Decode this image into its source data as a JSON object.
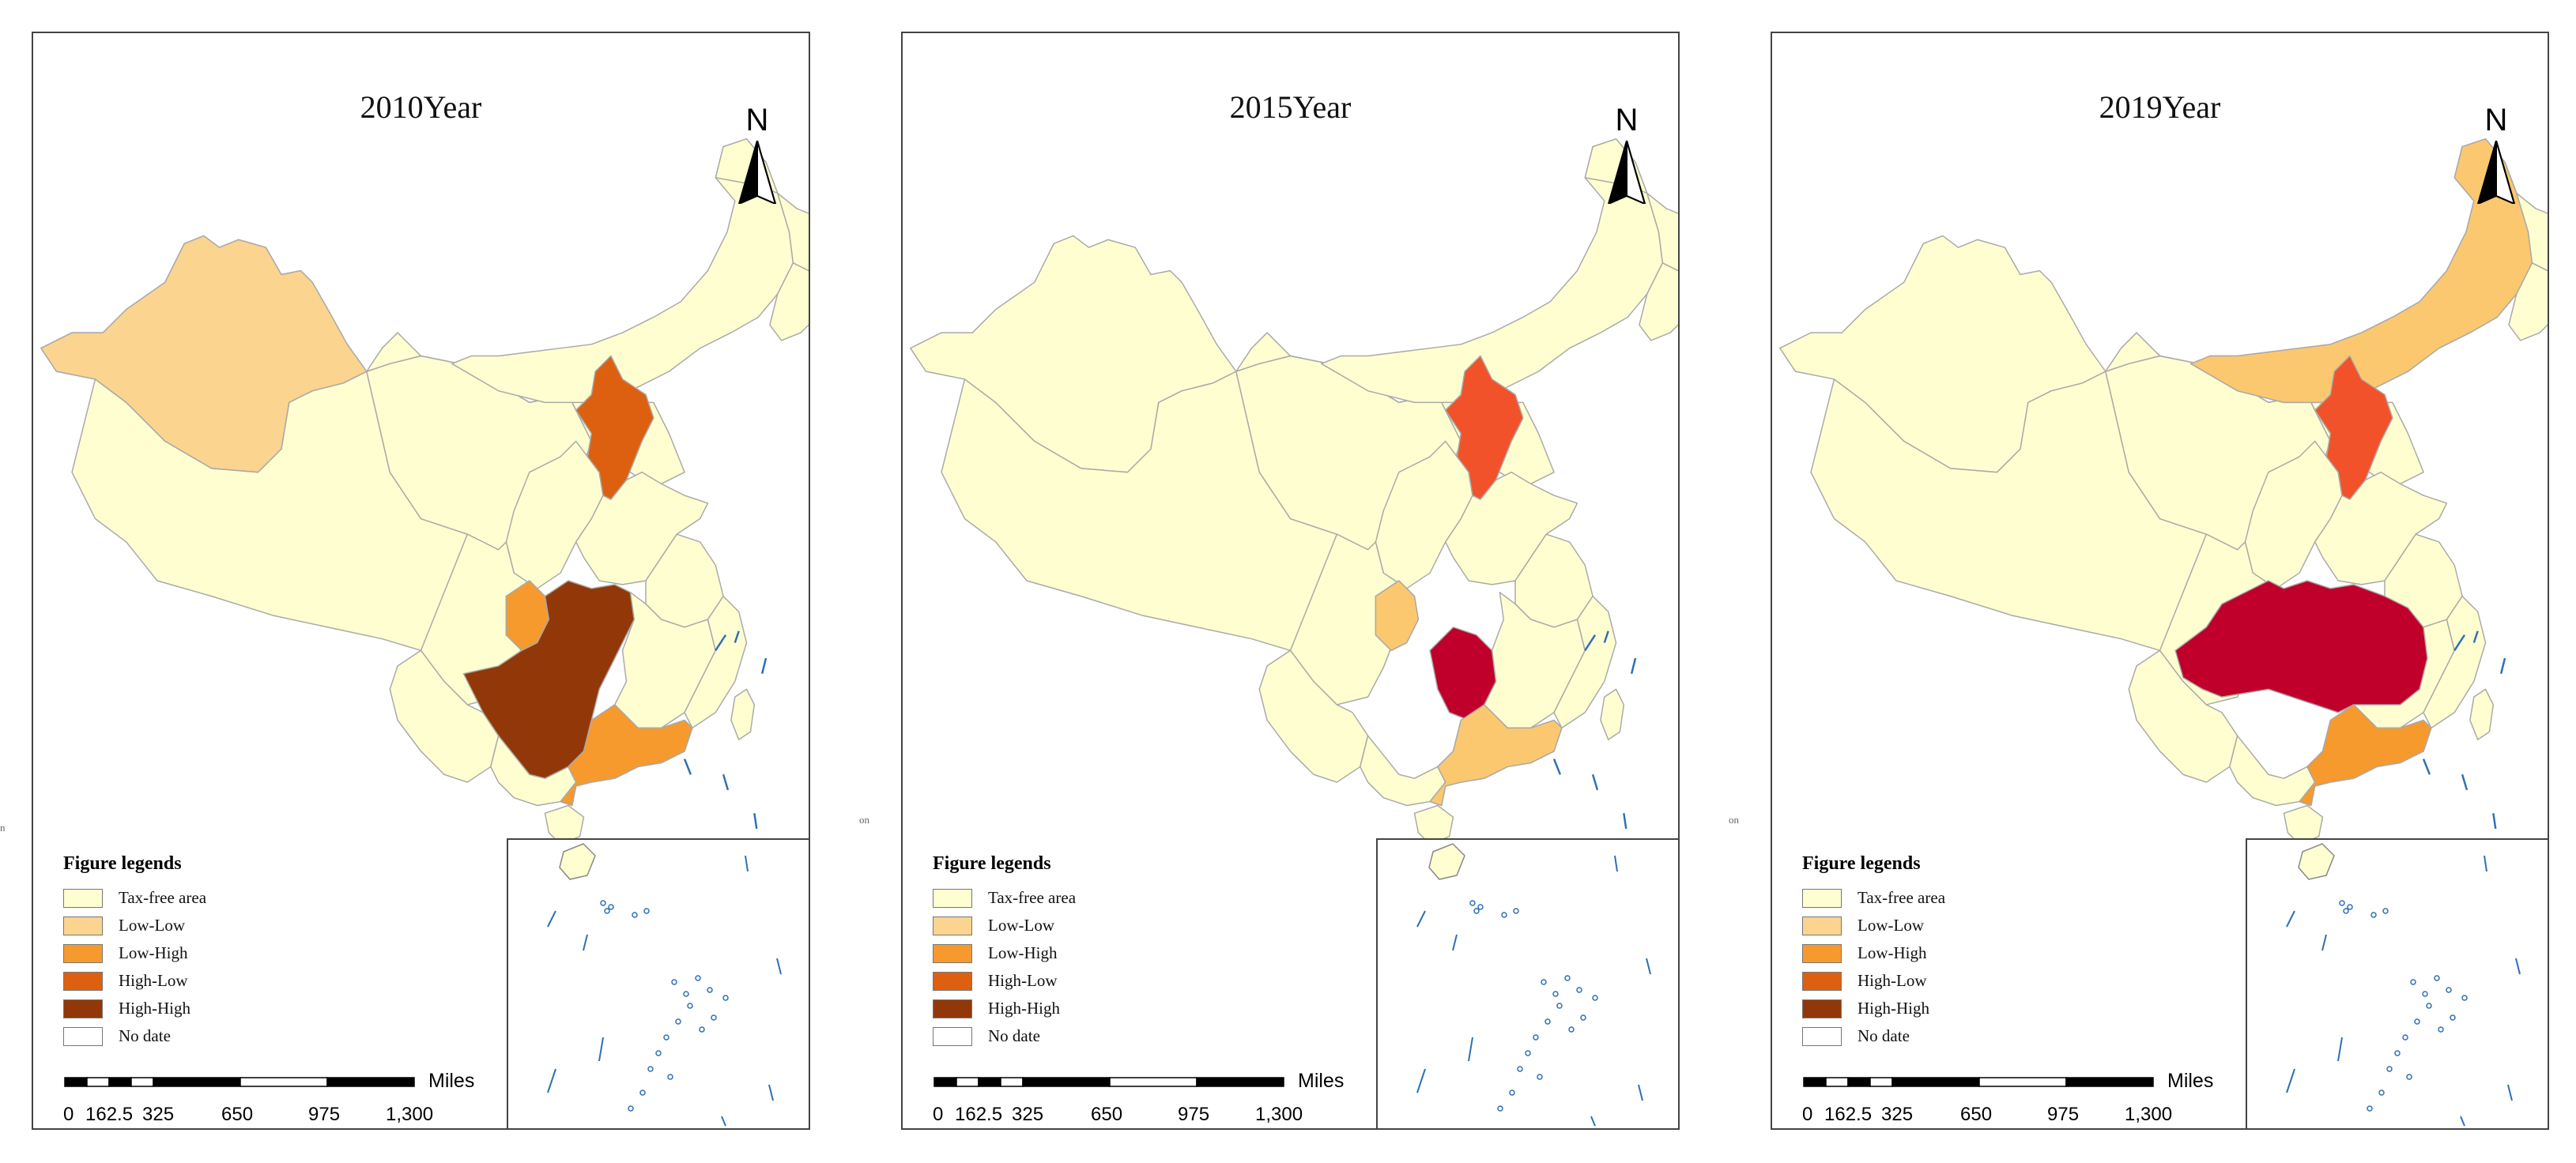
{
  "colors": {
    "tax_free": "#FFFED0",
    "low_low": "#FBD48F",
    "low_high": "#F69A2E",
    "high_low": "#DD6010",
    "high_high": "#923808",
    "no_data": "#FFFFFF",
    "hot_red": "#F2522A",
    "crimson": "#C0002A",
    "light_orange": "#FBC86F",
    "border": "#A9A9A9",
    "water": "#2F6FB5"
  },
  "panels": [
    {
      "title": "2010Year",
      "north_label": "N",
      "regions": {
        "xinjiang": "low_low",
        "beijing_hebei": "high_low",
        "chongqing": "low_high",
        "central_south": "high_high",
        "guangdong": "low_high"
      }
    },
    {
      "title": "2015Year",
      "north_label": "N",
      "regions": {
        "beijing_hebei": "hot_red",
        "chongqing": "light_orange",
        "hunan": "crimson",
        "guangdong": "light_orange"
      }
    },
    {
      "title": "2019Year",
      "north_label": "N",
      "regions": {
        "inner_mongolia": "light_orange",
        "beijing_hebei": "hot_red",
        "central_band": "crimson",
        "guangdong": "low_high"
      }
    }
  ],
  "legend": {
    "title": "Figure legends",
    "items": [
      {
        "label": "Tax-free area",
        "color": "#FFFED0"
      },
      {
        "label": "Low-Low",
        "color": "#FBD48F"
      },
      {
        "label": "Low-High",
        "color": "#F69A2E"
      },
      {
        "label": "High-Low",
        "color": "#DD6010"
      },
      {
        "label": "High-High",
        "color": "#923808"
      },
      {
        "label": "No date",
        "color": "#FFFFFF"
      }
    ]
  },
  "scalebar": {
    "units": "Miles",
    "ticks": [
      "0",
      "162.5",
      "325",
      "650",
      "975",
      "1,300"
    ]
  },
  "edge_notes": [
    "n",
    "on",
    "on"
  ]
}
